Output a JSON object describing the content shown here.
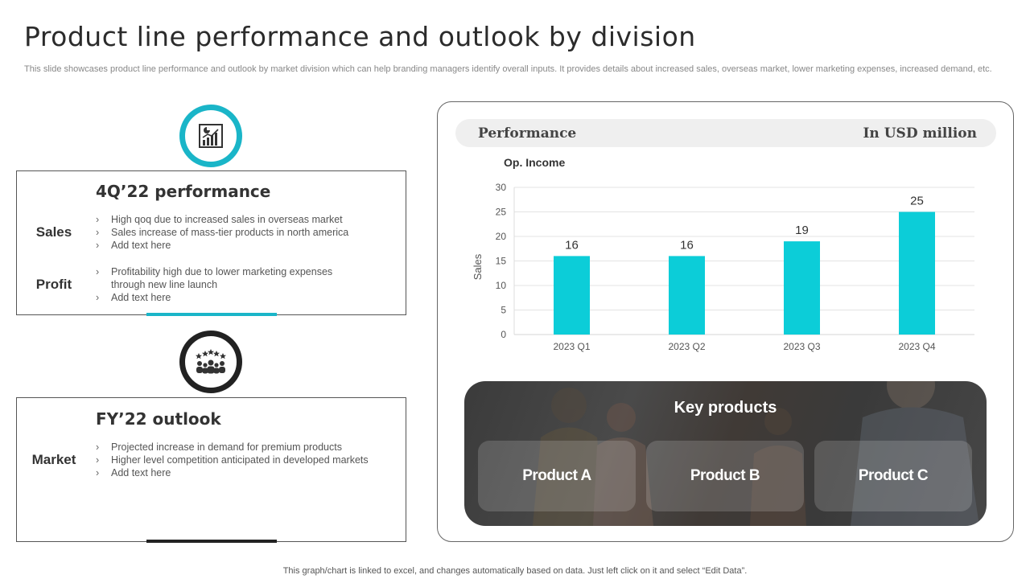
{
  "page": {
    "title": "Product line performance and outlook by division",
    "subtitle": "This slide showcases product line performance and outlook by market division which can help branding managers identify overall inputs. It provides details about increased sales, overseas market, lower marketing expenses, increased demand, etc.",
    "footer": "This graph/chart is linked to excel,  and changes automatically based on data. Just left click on it and select “Edit Data”."
  },
  "performance_card": {
    "icon": "chart-report-icon",
    "title": "4Q’22 performance",
    "sales_label": "Sales",
    "sales_bullets": [
      "High qoq due to increased sales in overseas  market",
      "Sales increase of mass-tier products in north america",
      "Add text here"
    ],
    "profit_label": "Profit",
    "profit_bullets": [
      "Profitability high due to lower marketing expenses through new line launch",
      "Add text here"
    ]
  },
  "outlook_card": {
    "icon": "rating-audience-icon",
    "title": "FY’22 outlook",
    "market_label": "Market",
    "market_bullets": [
      "Projected increase in demand for premium products",
      "Higher level competition anticipated in developed  markets",
      "Add text here"
    ]
  },
  "performance_panel": {
    "header_left": "Performance",
    "header_right": "In USD million"
  },
  "chart_data": {
    "type": "bar",
    "title": "Op. Income",
    "xlabel": "",
    "ylabel": "Sales",
    "categories": [
      "2023 Q1",
      "2023 Q2",
      "2023 Q3",
      "2023 Q4"
    ],
    "values": [
      16,
      16,
      19,
      25
    ],
    "ylim": [
      0,
      30
    ],
    "yticks": [
      0,
      5,
      10,
      15,
      20,
      25,
      30
    ],
    "bar_color": "#0ccdd8",
    "grid": true
  },
  "key_products": {
    "title": "Key products",
    "items": [
      "Product A",
      "Product B",
      "Product C"
    ]
  },
  "colors": {
    "accent_teal": "#1ab5c8",
    "dark": "#222222"
  }
}
